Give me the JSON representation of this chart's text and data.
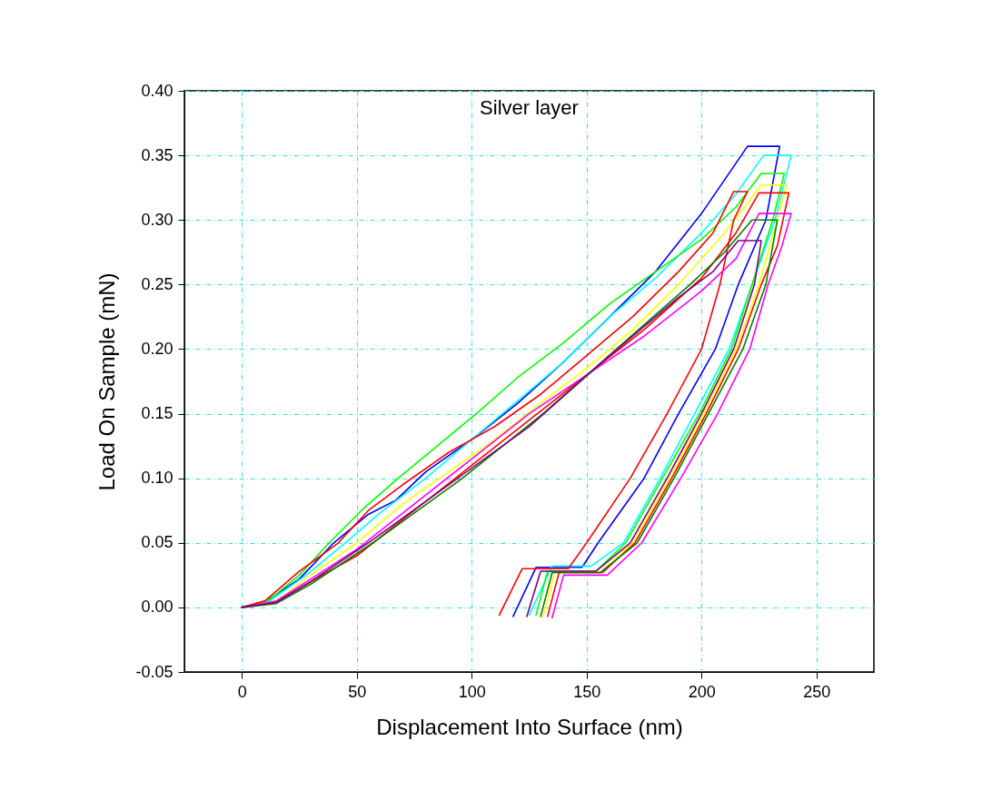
{
  "chart_data": {
    "type": "line",
    "title": "Silver layer",
    "xlabel": "Displacement Into Surface (nm)",
    "ylabel": "Load On Sample (mN)",
    "xlim": [
      -25,
      275
    ],
    "xticks": [
      0,
      50,
      100,
      150,
      200,
      250
    ],
    "ylim": [
      -0.05,
      0.4
    ],
    "yticks": [
      {
        "value": -0.05,
        "label": "-0.05"
      },
      {
        "value": 0,
        "label": "0.00"
      },
      {
        "value": 0.05,
        "label": "0.05"
      },
      {
        "value": 0.1,
        "label": "0.10"
      },
      {
        "value": 0.15,
        "label": "0.15"
      },
      {
        "value": 0.2,
        "label": "0.20"
      },
      {
        "value": 0.25,
        "label": "0.25"
      },
      {
        "value": 0.3,
        "label": "0.30"
      },
      {
        "value": 0.35,
        "label": "0.35"
      },
      {
        "value": 0.4,
        "label": "0.40"
      }
    ],
    "grid": true,
    "legend": false,
    "series": [
      {
        "color": "#0000ff",
        "x": [
          0,
          10,
          25,
          40,
          55,
          67,
          80,
          100,
          120,
          140,
          160,
          180,
          200,
          220,
          234,
          228,
          216,
          206,
          190,
          175,
          155,
          148,
          128,
          118
        ],
        "values": [
          0,
          0.004,
          0.022,
          0.05,
          0.072,
          0.083,
          0.105,
          0.13,
          0.158,
          0.19,
          0.225,
          0.26,
          0.305,
          0.357,
          0.357,
          0.3,
          0.25,
          0.2,
          0.15,
          0.1,
          0.05,
          0.031,
          0.031,
          -0.007
        ]
      },
      {
        "color": "#00ffff",
        "x": [
          0,
          12,
          28,
          45,
          60,
          80,
          100,
          120,
          140,
          160,
          180,
          200,
          215,
          227,
          239,
          232,
          222,
          212,
          197,
          182,
          166,
          152,
          135,
          125
        ],
        "values": [
          0,
          0.005,
          0.025,
          0.05,
          0.073,
          0.1,
          0.13,
          0.16,
          0.19,
          0.225,
          0.255,
          0.29,
          0.32,
          0.35,
          0.35,
          0.3,
          0.25,
          0.2,
          0.15,
          0.1,
          0.05,
          0.032,
          0.032,
          -0.006
        ]
      },
      {
        "color": "#00ff00",
        "x": [
          0,
          12,
          25,
          38,
          52,
          68,
          85,
          102,
          120,
          140,
          160,
          180,
          200,
          215,
          226,
          236,
          231,
          222,
          213,
          199,
          183,
          167,
          154,
          133,
          128
        ],
        "values": [
          0,
          0.006,
          0.025,
          0.05,
          0.075,
          0.1,
          0.125,
          0.15,
          0.178,
          0.205,
          0.235,
          0.26,
          0.285,
          0.31,
          0.336,
          0.336,
          0.3,
          0.25,
          0.2,
          0.15,
          0.1,
          0.05,
          0.028,
          0.028,
          -0.006
        ]
      },
      {
        "color": "#ffff00",
        "x": [
          0,
          15,
          30,
          50,
          70,
          90,
          110,
          130,
          150,
          170,
          190,
          210,
          226,
          237,
          233,
          225,
          215,
          201,
          186,
          170,
          156,
          136,
          131
        ],
        "values": [
          0,
          0.005,
          0.025,
          0.05,
          0.08,
          0.105,
          0.13,
          0.158,
          0.185,
          0.215,
          0.25,
          0.29,
          0.327,
          0.327,
          0.3,
          0.25,
          0.2,
          0.15,
          0.1,
          0.05,
          0.027,
          0.027,
          -0.007
        ]
      },
      {
        "color": "#ff0000",
        "x": [
          0,
          10,
          25,
          42,
          55,
          70,
          90,
          110,
          130,
          150,
          170,
          190,
          205,
          214,
          220,
          214,
          208,
          200,
          185,
          169,
          150,
          142,
          122,
          112
        ],
        "values": [
          0,
          0.005,
          0.028,
          0.05,
          0.075,
          0.095,
          0.12,
          0.14,
          0.165,
          0.195,
          0.225,
          0.26,
          0.29,
          0.322,
          0.322,
          0.3,
          0.25,
          0.2,
          0.15,
          0.1,
          0.05,
          0.03,
          0.03,
          -0.006
        ]
      },
      {
        "color": "#ff0000",
        "x": [
          0,
          15,
          30,
          50,
          75,
          100,
          125,
          150,
          175,
          200,
          215,
          225,
          238,
          233,
          226,
          216,
          202,
          187,
          171,
          157,
          138,
          133
        ],
        "values": [
          0,
          0.004,
          0.02,
          0.04,
          0.075,
          0.11,
          0.145,
          0.18,
          0.215,
          0.255,
          0.29,
          0.321,
          0.321,
          0.28,
          0.25,
          0.2,
          0.15,
          0.1,
          0.05,
          0.027,
          0.027,
          -0.007
        ]
      },
      {
        "color": "#ff00ff",
        "x": [
          0,
          15,
          30,
          50,
          75,
          100,
          125,
          150,
          175,
          200,
          215,
          225,
          239,
          235,
          229,
          221,
          207,
          191,
          174,
          159,
          140,
          135
        ],
        "values": [
          0,
          0.005,
          0.022,
          0.045,
          0.08,
          0.115,
          0.15,
          0.18,
          0.21,
          0.245,
          0.27,
          0.305,
          0.305,
          0.28,
          0.25,
          0.2,
          0.15,
          0.1,
          0.05,
          0.025,
          0.025,
          -0.008
        ]
      },
      {
        "color": "#008000",
        "x": [
          0,
          15,
          30,
          57,
          96,
          131,
          163,
          195,
          210,
          222,
          233,
          228,
          218,
          203,
          188,
          172,
          156,
          135,
          130
        ],
        "values": [
          0,
          0.003,
          0.018,
          0.05,
          0.1,
          0.15,
          0.2,
          0.25,
          0.275,
          0.3,
          0.3,
          0.25,
          0.2,
          0.15,
          0.1,
          0.05,
          0.027,
          0.027,
          -0.007
        ]
      },
      {
        "color": "#800080",
        "x": [
          0,
          15,
          30,
          55,
          90,
          125,
          160,
          190,
          205,
          216,
          226,
          223,
          214,
          200,
          185,
          169,
          154,
          130,
          124
        ],
        "values": [
          0,
          0.004,
          0.02,
          0.05,
          0.095,
          0.14,
          0.195,
          0.24,
          0.26,
          0.284,
          0.284,
          0.25,
          0.2,
          0.15,
          0.1,
          0.05,
          0.028,
          0.028,
          -0.007
        ]
      }
    ]
  }
}
